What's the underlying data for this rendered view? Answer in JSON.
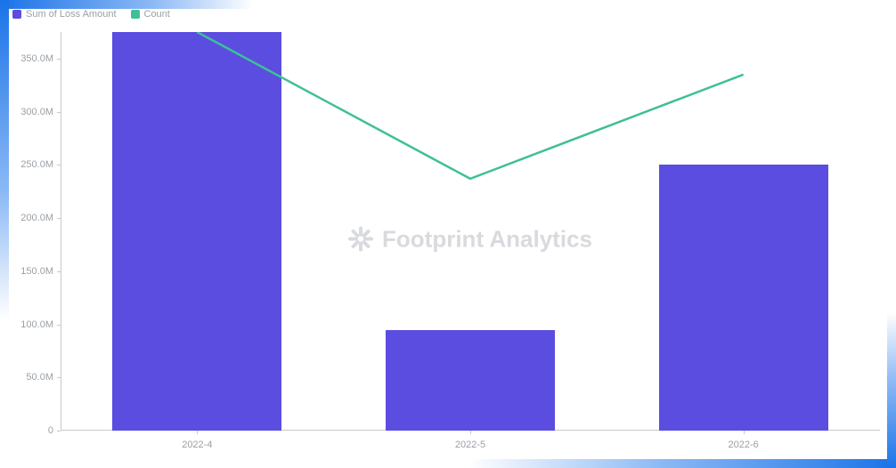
{
  "legend": {
    "series1": {
      "label": "Sum of Loss Amount",
      "color": "#5b4de0"
    },
    "series2": {
      "label": "Count",
      "color": "#3fbf99"
    }
  },
  "chart": {
    "type": "bar+line",
    "background_color": "#ffffff",
    "border_gradient_from": "#1a73e8",
    "border_gradient_to": "#ffffff",
    "y_axis": {
      "min": 0,
      "max": 375,
      "tick_step": 50,
      "ticks": [
        {
          "value": 0,
          "label": "0"
        },
        {
          "value": 50,
          "label": "50.0M"
        },
        {
          "value": 100,
          "label": "100.0M"
        },
        {
          "value": 150,
          "label": "150.0M"
        },
        {
          "value": 200,
          "label": "200.0M"
        },
        {
          "value": 250,
          "label": "250.0M"
        },
        {
          "value": 300,
          "label": "300.0M"
        },
        {
          "value": 350,
          "label": "350.0M"
        }
      ],
      "label_color": "#9aa0a6",
      "label_fontsize": 11,
      "grid": false,
      "axis_line_color": "#c9c9c9"
    },
    "x_axis": {
      "categories": [
        "2022-4",
        "2022-5",
        "2022-6"
      ],
      "label_color": "#9aa0a6",
      "label_fontsize": 11
    },
    "bars": {
      "color": "#5b4de0",
      "width_frac": 0.62,
      "values": [
        375,
        95,
        250
      ]
    },
    "line": {
      "color": "#3fbf99",
      "width": 2.5,
      "values": [
        375,
        237,
        335
      ]
    }
  },
  "watermark": {
    "text": "Footprint Analytics",
    "color": "#b9bdc4",
    "fontsize": 26
  }
}
